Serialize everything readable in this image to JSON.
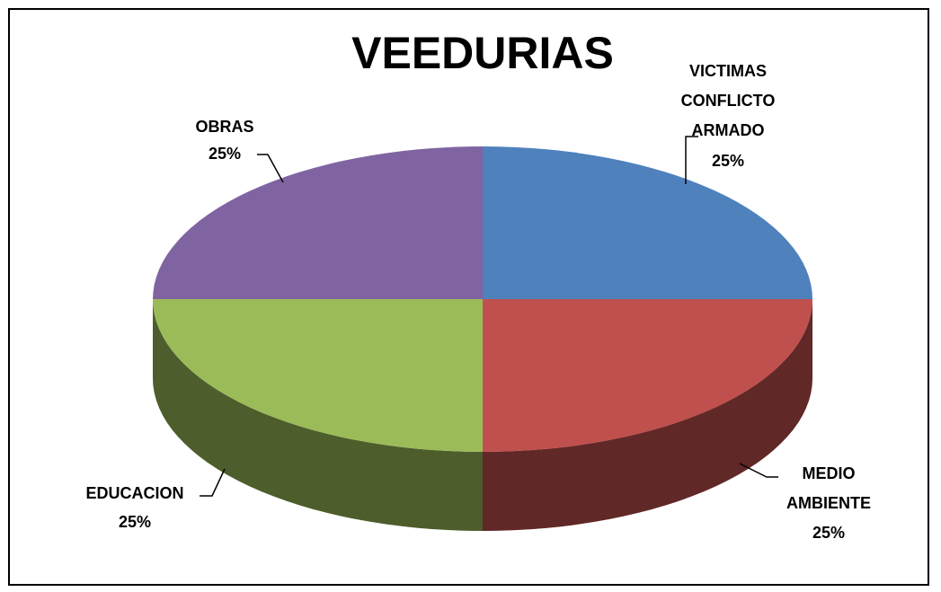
{
  "chart_data": {
    "type": "pie",
    "title": "VEEDURIAS",
    "categories": [
      "VICTIMAS CONFLICTO ARMADO",
      "MEDIO AMBIENTE",
      "EDUCACION",
      "OBRAS"
    ],
    "values": [
      25,
      25,
      25,
      25
    ],
    "value_labels": [
      "25%",
      "25%",
      "25%",
      "25%"
    ],
    "colors": [
      "#4f81bd",
      "#c0504d",
      "#9bbb59",
      "#8064a2"
    ]
  }
}
